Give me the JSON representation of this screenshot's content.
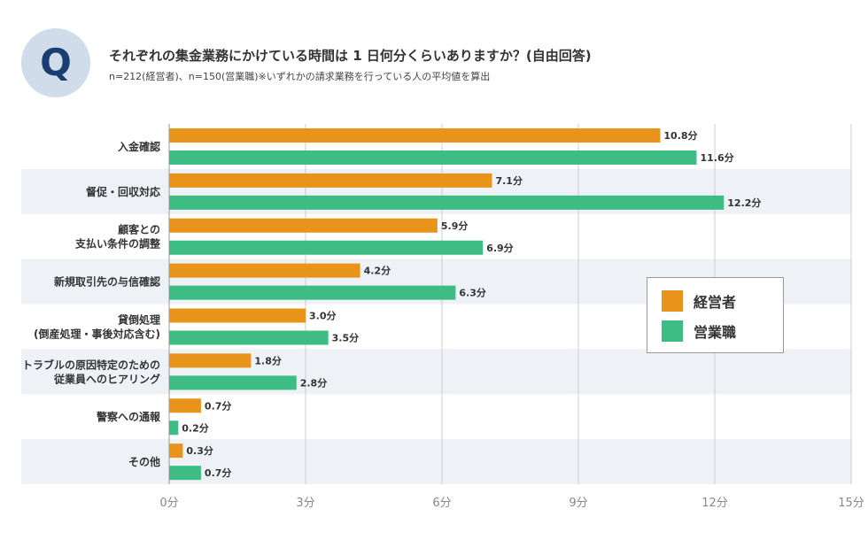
{
  "header": {
    "badge": "Q",
    "title": "それぞれの集金業務にかけている時間は 1 日何分くらいありますか？(自由回答)",
    "subtitle": "n=212(経営者)、n=150(営業職)※いずれかの請求業務を行っている人の平均値を算出"
  },
  "colors": {
    "series_a": "#e8941a",
    "series_b": "#3dbd84",
    "band": "#eef1f6",
    "grid": "#cccccc",
    "tick": "#888888"
  },
  "chart_data": {
    "type": "bar",
    "orientation": "horizontal",
    "title": "それぞれの集金業務にかけている時間は 1 日何分くらいありますか？(自由回答)",
    "categories": [
      [
        "入金確認"
      ],
      [
        "督促・回収対応"
      ],
      [
        "顧客との",
        "支払い条件の調整"
      ],
      [
        "新規取引先の与信確認"
      ],
      [
        "貸倒処理",
        "(倒産処理・事後対応含む)"
      ],
      [
        "トラブルの原因特定のための",
        "従業員へのヒアリング"
      ],
      [
        "警察への通報"
      ],
      [
        "その他"
      ]
    ],
    "series": [
      {
        "name": "経営者",
        "values": [
          10.8,
          7.1,
          5.9,
          4.2,
          3.0,
          1.8,
          0.7,
          0.3
        ]
      },
      {
        "name": "営業職",
        "values": [
          11.6,
          12.2,
          6.9,
          6.3,
          3.5,
          2.8,
          0.2,
          0.7
        ]
      }
    ],
    "value_labels": [
      [
        "10.8分",
        "7.1分",
        "5.9分",
        "4.2分",
        "3.0分",
        "1.8分",
        "0.7分",
        "0.3分"
      ],
      [
        "11.6分",
        "12.2分",
        "6.9分",
        "6.3分",
        "3.5分",
        "2.8分",
        "0.2分",
        "0.7分"
      ]
    ],
    "xlim": [
      0,
      15
    ],
    "xticks": [
      0,
      3,
      6,
      9,
      12,
      15
    ],
    "xtick_labels": [
      "0分",
      "3分",
      "6分",
      "9分",
      "12分",
      "15分"
    ],
    "grid": true,
    "legend_position": "right"
  },
  "legend": {
    "items": [
      {
        "label": "経営者"
      },
      {
        "label": "営業職"
      }
    ]
  }
}
